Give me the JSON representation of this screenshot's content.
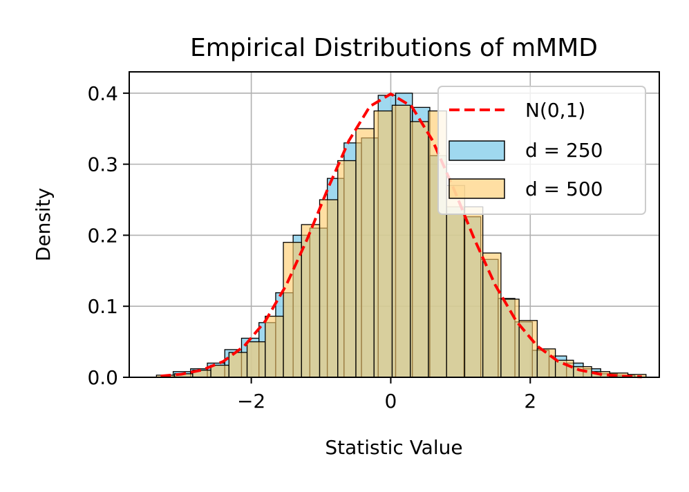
{
  "chart_data": {
    "type": "histogram",
    "title": "Empirical Distributions of mMMD",
    "xlabel": "Statistic Value",
    "ylabel": "Density",
    "xlim": [
      -3.75,
      3.85
    ],
    "ylim": [
      0,
      0.43
    ],
    "xticks": [
      -2,
      0,
      2
    ],
    "xtick_labels": [
      "−2",
      "0",
      "2"
    ],
    "yticks": [
      0,
      0.1,
      0.2,
      0.3,
      0.4
    ],
    "ytick_labels": [
      "0.0",
      "0.1",
      "0.2",
      "0.3",
      "0.4"
    ],
    "grid": true,
    "legend": "top-right",
    "series": [
      {
        "name": "d = 250",
        "kind": "histogram",
        "color": "#87ceeb",
        "bins": [
          {
            "x0": -3.12,
            "x1": -2.87,
            "y": 0.008
          },
          {
            "x0": -2.87,
            "x1": -2.63,
            "y": 0.012
          },
          {
            "x0": -2.63,
            "x1": -2.38,
            "y": 0.02
          },
          {
            "x0": -2.38,
            "x1": -2.14,
            "y": 0.039
          },
          {
            "x0": -2.14,
            "x1": -1.89,
            "y": 0.055
          },
          {
            "x0": -1.89,
            "x1": -1.65,
            "y": 0.077
          },
          {
            "x0": -1.65,
            "x1": -1.4,
            "y": 0.119
          },
          {
            "x0": -1.4,
            "x1": -1.16,
            "y": 0.2
          },
          {
            "x0": -1.16,
            "x1": -0.91,
            "y": 0.21
          },
          {
            "x0": -0.91,
            "x1": -0.67,
            "y": 0.28
          },
          {
            "x0": -0.67,
            "x1": -0.42,
            "y": 0.33
          },
          {
            "x0": -0.42,
            "x1": -0.18,
            "y": 0.337
          },
          {
            "x0": -0.18,
            "x1": 0.07,
            "y": 0.397
          },
          {
            "x0": 0.07,
            "x1": 0.31,
            "y": 0.4
          },
          {
            "x0": 0.31,
            "x1": 0.56,
            "y": 0.38
          },
          {
            "x0": 0.56,
            "x1": 0.8,
            "y": 0.312
          },
          {
            "x0": 0.8,
            "x1": 1.05,
            "y": 0.24
          },
          {
            "x0": 1.05,
            "x1": 1.29,
            "y": 0.226
          },
          {
            "x0": 1.29,
            "x1": 1.54,
            "y": 0.166
          },
          {
            "x0": 1.54,
            "x1": 1.78,
            "y": 0.111
          },
          {
            "x0": 1.78,
            "x1": 2.03,
            "y": 0.078
          },
          {
            "x0": 2.03,
            "x1": 2.27,
            "y": 0.038
          },
          {
            "x0": 2.27,
            "x1": 2.52,
            "y": 0.03
          },
          {
            "x0": 2.52,
            "x1": 2.76,
            "y": 0.02
          },
          {
            "x0": 2.76,
            "x1": 3.01,
            "y": 0.012
          },
          {
            "x0": 3.01,
            "x1": 3.25,
            "y": 0.005
          },
          {
            "x0": 3.25,
            "x1": 3.5,
            "y": 0.003
          }
        ]
      },
      {
        "name": "d = 500",
        "kind": "histogram",
        "color": "#ffc966",
        "bins": [
          {
            "x0": -3.36,
            "x1": -3.1,
            "y": 0.003
          },
          {
            "x0": -3.1,
            "x1": -2.84,
            "y": 0.005
          },
          {
            "x0": -2.84,
            "x1": -2.58,
            "y": 0.01
          },
          {
            "x0": -2.58,
            "x1": -2.32,
            "y": 0.017
          },
          {
            "x0": -2.32,
            "x1": -2.06,
            "y": 0.035
          },
          {
            "x0": -2.06,
            "x1": -1.8,
            "y": 0.05
          },
          {
            "x0": -1.8,
            "x1": -1.54,
            "y": 0.086
          },
          {
            "x0": -1.54,
            "x1": -1.28,
            "y": 0.19
          },
          {
            "x0": -1.28,
            "x1": -1.02,
            "y": 0.215
          },
          {
            "x0": -1.02,
            "x1": -0.76,
            "y": 0.25
          },
          {
            "x0": -0.76,
            "x1": -0.5,
            "y": 0.305
          },
          {
            "x0": -0.5,
            "x1": -0.24,
            "y": 0.35
          },
          {
            "x0": -0.24,
            "x1": 0.02,
            "y": 0.375
          },
          {
            "x0": 0.02,
            "x1": 0.28,
            "y": 0.383
          },
          {
            "x0": 0.28,
            "x1": 0.54,
            "y": 0.36
          },
          {
            "x0": 0.54,
            "x1": 0.8,
            "y": 0.375
          },
          {
            "x0": 0.8,
            "x1": 1.06,
            "y": 0.27
          },
          {
            "x0": 1.06,
            "x1": 1.32,
            "y": 0.24
          },
          {
            "x0": 1.32,
            "x1": 1.58,
            "y": 0.175
          },
          {
            "x0": 1.58,
            "x1": 1.84,
            "y": 0.11
          },
          {
            "x0": 1.84,
            "x1": 2.1,
            "y": 0.08
          },
          {
            "x0": 2.1,
            "x1": 2.36,
            "y": 0.04
          },
          {
            "x0": 2.36,
            "x1": 2.62,
            "y": 0.024
          },
          {
            "x0": 2.62,
            "x1": 2.88,
            "y": 0.015
          },
          {
            "x0": 2.88,
            "x1": 3.14,
            "y": 0.008
          },
          {
            "x0": 3.14,
            "x1": 3.4,
            "y": 0.006
          },
          {
            "x0": 3.4,
            "x1": 3.66,
            "y": 0.004
          }
        ]
      },
      {
        "name": "N(0,1)",
        "kind": "line",
        "style": "dashed",
        "color": "#ff0000",
        "x": [
          -3.3,
          -3.0,
          -2.7,
          -2.4,
          -2.1,
          -1.8,
          -1.5,
          -1.2,
          -0.9,
          -0.6,
          -0.3,
          0.0,
          0.3,
          0.6,
          0.9,
          1.2,
          1.5,
          1.8,
          2.1,
          2.4,
          2.7,
          3.0,
          3.3,
          3.6
        ],
        "y": [
          0.0017,
          0.0044,
          0.0104,
          0.0224,
          0.044,
          0.079,
          0.1295,
          0.1942,
          0.2661,
          0.3332,
          0.3814,
          0.3989,
          0.3814,
          0.3332,
          0.2661,
          0.1942,
          0.1295,
          0.079,
          0.044,
          0.0224,
          0.0104,
          0.0044,
          0.0017,
          0.0006
        ]
      }
    ]
  }
}
